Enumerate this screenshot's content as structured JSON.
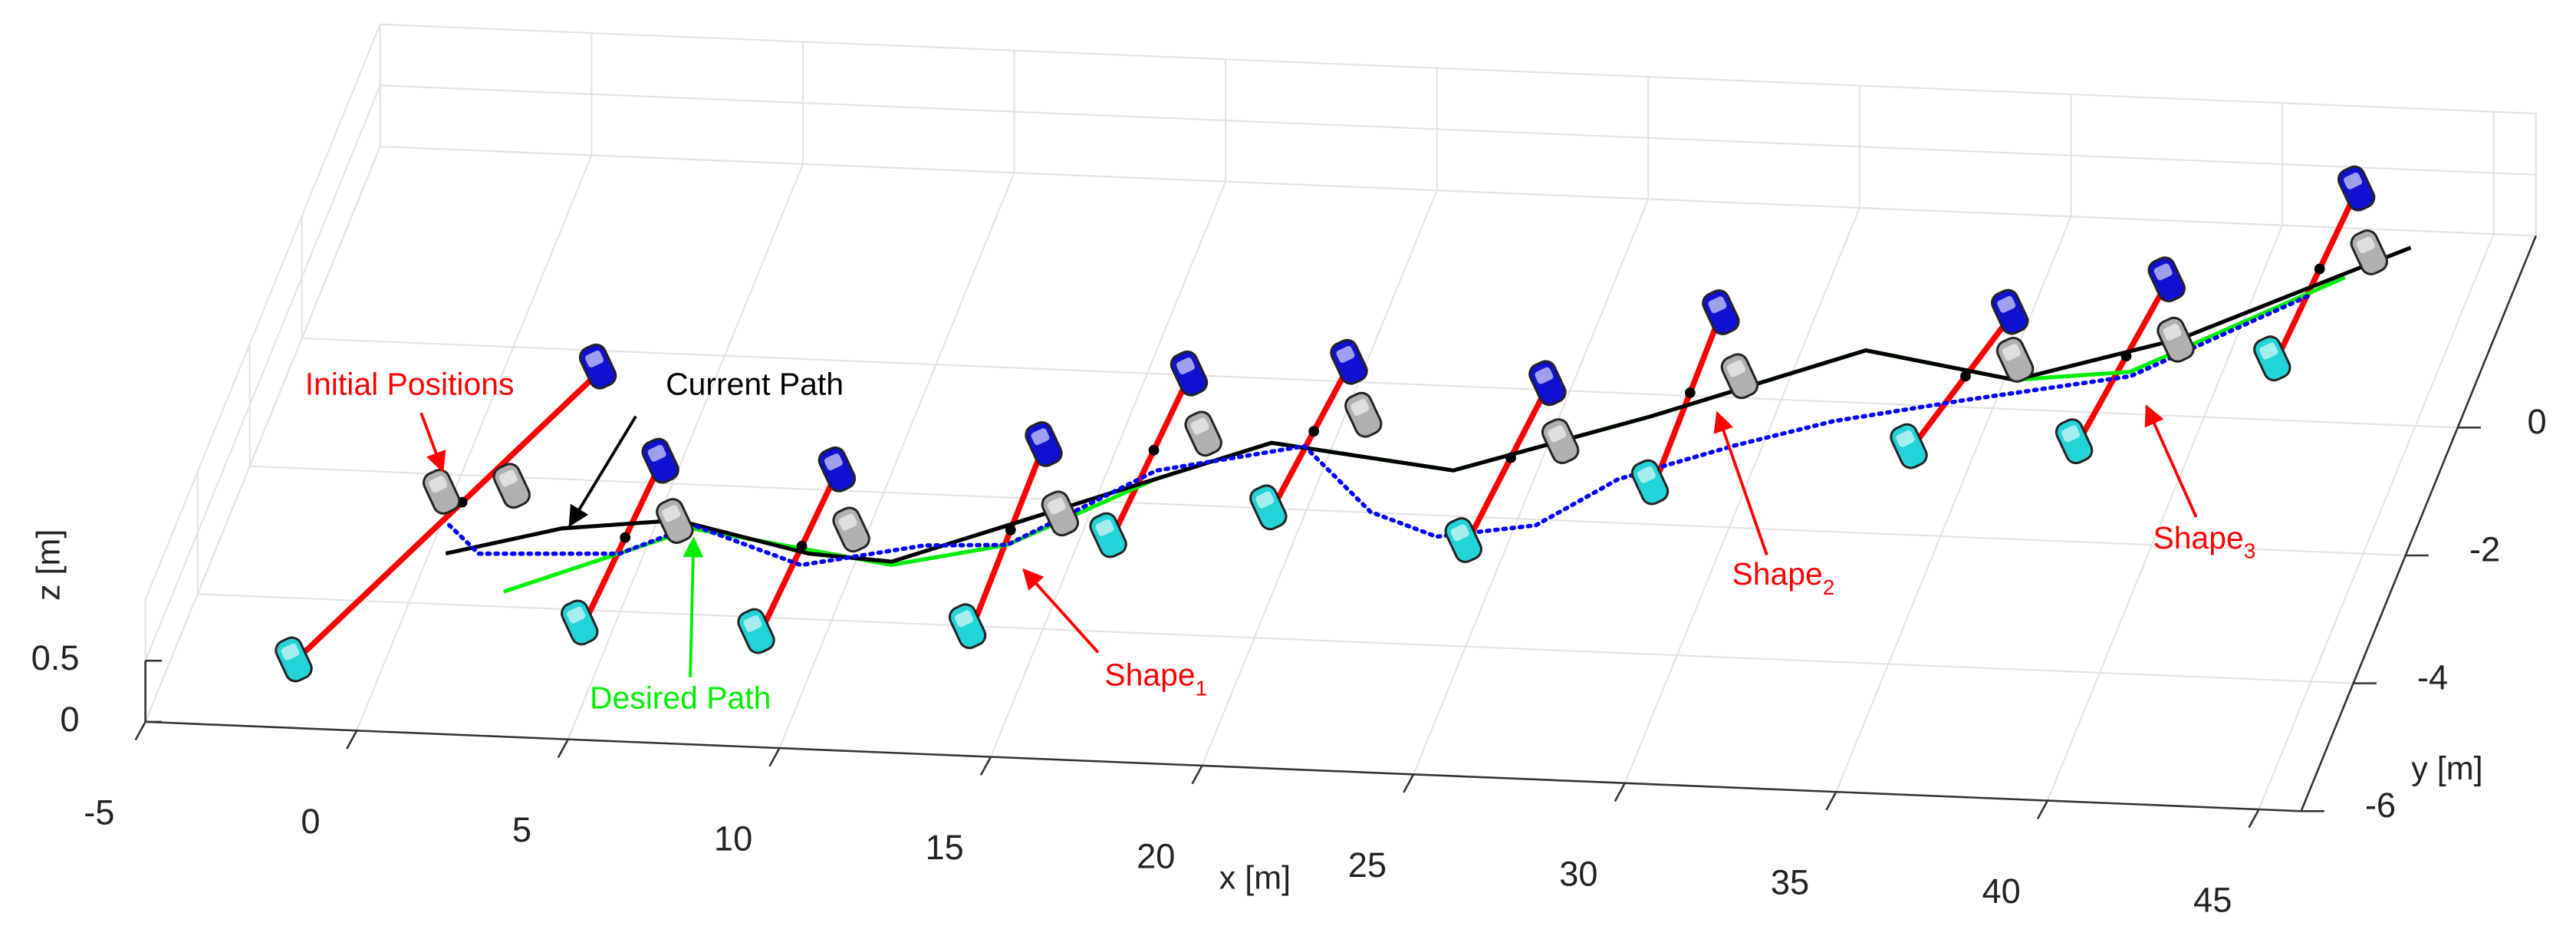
{
  "chart_data": {
    "type": "path3d",
    "xlabel": "x [m]",
    "ylabel": "y [m]",
    "zlabel": "z [m]",
    "xlim": [
      -5,
      46
    ],
    "ylim": [
      -6,
      3
    ],
    "zlim": [
      0,
      1
    ],
    "xticks": [
      -5,
      0,
      5,
      10,
      15,
      20,
      25,
      30,
      35,
      40,
      45
    ],
    "yticks": [
      0,
      -2,
      -4,
      -6
    ],
    "zticks": [
      0,
      0.5
    ],
    "grid": true,
    "series": [
      {
        "name": "Desired Path",
        "color": "#00ee00",
        "style": "solid",
        "x": [
          2.1,
          5.92,
          10.87,
          13.37,
          16.2,
          18.55,
          23.04,
          27.13,
          31.5,
          35.24,
          37.85,
          41.95
        ],
        "y": [
          -3.77,
          -2.68,
          -3.11,
          -2.73,
          -1.62,
          -0.99,
          -1.3,
          -0.34,
          0.81,
          0.45,
          0.65,
          2.24
        ]
      },
      {
        "name": "Current Path",
        "color": "#000000",
        "style": "solid",
        "x": [
          0.39,
          2.85,
          5.46,
          8.84,
          10.84,
          16.2,
          18.55,
          23.04,
          27.13,
          31.5,
          35.24,
          38.7,
          43.2
        ],
        "y": [
          -3.22,
          -2.76,
          -2.56,
          -2.99,
          -3.06,
          -1.62,
          -0.99,
          -1.3,
          -0.34,
          0.81,
          0.45,
          1.19,
          2.74
        ]
      },
      {
        "color": "#0000ff",
        "style": "dotted",
        "x": [
          0.2,
          1.16,
          4.43,
          5.89,
          8.76,
          11.45,
          13.37,
          16.13,
          19.35,
          21.51,
          23.28,
          25.48,
          26.96,
          29.34,
          31.41,
          34.28,
          37.9,
          41.35
        ],
        "y": [
          -2.78,
          -3.2,
          -3.11,
          -2.63,
          -3.17,
          -2.79,
          -2.73,
          -1.49,
          -1.02,
          -1.99,
          -2.33,
          -2.09,
          -1.33,
          -0.74,
          -0.3,
          0.11,
          0.58,
          1.96
        ]
      }
    ],
    "formation_color": "#ff0000",
    "formations": [
      {
        "x": [
          -2.02,
          2.17
        ],
        "y": [
          -4.89,
          -0.4
        ]
      },
      {
        "x": [
          4.28,
          4.52
        ],
        "y": [
          -4.14,
          -1.81
        ]
      },
      {
        "x": [
          8.47,
          8.71
        ],
        "y": [
          -4.16,
          -1.83
        ]
      },
      {
        "x": [
          13.34,
          13.28
        ],
        "y": [
          -3.95,
          -1.31
        ]
      },
      {
        "x": [
          15.75,
          15.99
        ],
        "y": [
          -2.46,
          -0.13
        ]
      },
      {
        "x": [
          19.21,
          19.6
        ],
        "y": [
          -1.93,
          0.15
        ]
      },
      {
        "x": [
          24.06,
          24.42
        ],
        "y": [
          -2.31,
          -0.05
        ]
      },
      {
        "x": [
          27.85,
          27.78
        ],
        "y": [
          -1.3,
          1.15
        ]
      },
      {
        "x": [
          33.53,
          34.5
        ],
        "y": [
          -0.58,
          1.34
        ]
      },
      {
        "x": [
          37.33,
          37.84
        ],
        "y": [
          -0.4,
          1.94
        ]
      },
      {
        "x": [
          41.15,
          41.39
        ],
        "y": [
          1.0,
          3.46
        ]
      }
    ],
    "annotations": [
      {
        "text": "Initial Positions",
        "color": "#ff0000"
      },
      {
        "text": "Current Path",
        "color": "#000000"
      },
      {
        "text": "Desired Path",
        "color": "#00ee00"
      },
      {
        "text": "Shape",
        "subscript": "1",
        "color": "#ff0000"
      },
      {
        "text": "Shape",
        "subscript": "2",
        "color": "#ff0000"
      },
      {
        "text": "Shape",
        "subscript": "3",
        "color": "#ff0000"
      }
    ]
  }
}
